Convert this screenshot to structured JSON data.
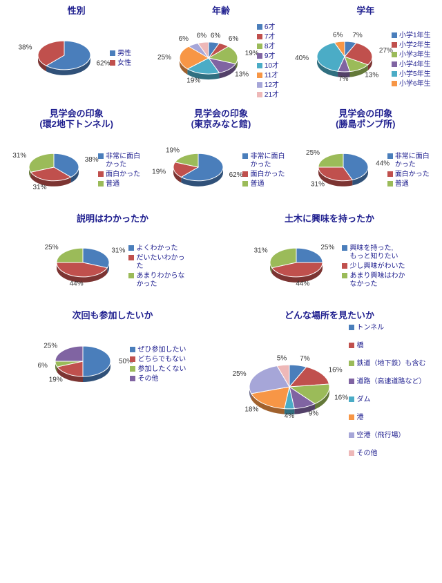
{
  "colors": {
    "series": [
      "#4a7ebb",
      "#c0504d",
      "#9bbb59",
      "#8064a2",
      "#4bacc6",
      "#f79646",
      "#a6a6d8",
      "#eeb8b8",
      "#c3d69b",
      "#bfb1d0"
    ],
    "title": "#1f1f8f",
    "label": "#333333"
  },
  "charts": [
    {
      "id": "gender",
      "title": "性別",
      "span": 2,
      "pieR": 38,
      "threeD": true,
      "slices": [
        {
          "label": "男性",
          "pct": 62
        },
        {
          "label": "女性",
          "pct": 38
        }
      ]
    },
    {
      "id": "age",
      "title": "年齢",
      "span": 2,
      "pieR": 42,
      "threeD": true,
      "slices": [
        {
          "label": "6才",
          "pct": 6
        },
        {
          "label": "7才",
          "pct": 6
        },
        {
          "label": "8才",
          "pct": 19
        },
        {
          "label": "9才",
          "pct": 13
        },
        {
          "label": "10才",
          "pct": 19
        },
        {
          "label": "11才",
          "pct": 25
        },
        {
          "label": "12才",
          "pct": 6
        },
        {
          "label": "21才",
          "pct": 6
        }
      ]
    },
    {
      "id": "grade",
      "title": "学年",
      "span": 2,
      "pieR": 40,
      "threeD": true,
      "slices": [
        {
          "label": "小学1年生",
          "pct": 7
        },
        {
          "label": "小学2年生",
          "pct": 27
        },
        {
          "label": "小学3年生",
          "pct": 13
        },
        {
          "label": "小学4年生",
          "pct": 7
        },
        {
          "label": "小学5年生",
          "pct": 40
        },
        {
          "label": "小学6年生",
          "pct": 6
        }
      ]
    },
    {
      "id": "impression1",
      "title": "見学会の印象\n(環2地下トンネル)",
      "span": 2,
      "pieR": 36,
      "threeD": true,
      "slices": [
        {
          "label": "非常に面白\nかった",
          "pct": 38
        },
        {
          "label": "面白かった",
          "pct": 31
        },
        {
          "label": "普通",
          "pct": 31
        }
      ]
    },
    {
      "id": "impression2",
      "title": "見学会の印象\n(東京みなと館)",
      "span": 2,
      "pieR": 36,
      "threeD": true,
      "slices": [
        {
          "label": "非常に面白\nかった",
          "pct": 62
        },
        {
          "label": "面白かった",
          "pct": 19
        },
        {
          "label": "普通",
          "pct": 19
        }
      ]
    },
    {
      "id": "impression3",
      "title": "見学会の印象\n(勝島ポンプ所)",
      "span": 2,
      "pieR": 36,
      "threeD": true,
      "slices": [
        {
          "label": "非常に面白\nかった",
          "pct": 44
        },
        {
          "label": "面白かった",
          "pct": 31
        },
        {
          "label": "普通",
          "pct": 25
        }
      ]
    },
    {
      "id": "understood",
      "title": "説明はわかったか",
      "span": 3,
      "pieR": 38,
      "threeD": true,
      "slices": [
        {
          "label": "よくわかった",
          "pct": 31
        },
        {
          "label": "だいたいわかっ\nた",
          "pct": 44
        },
        {
          "label": "あまりわからな\nかった",
          "pct": 25
        }
      ]
    },
    {
      "id": "interest",
      "title": "土木に興味を持ったか",
      "span": 3,
      "pieR": 38,
      "threeD": true,
      "slices": [
        {
          "label": "興味を持った,\nもっと知りたい",
          "pct": 25
        },
        {
          "label": "少し興味がわいた",
          "pct": 44
        },
        {
          "label": "あまり興味はわか\nなかった",
          "pct": 31
        }
      ]
    },
    {
      "id": "next",
      "title": "次回も参加したいか",
      "span": 3,
      "pieR": 40,
      "threeD": true,
      "slices": [
        {
          "label": "ぜひ参加したい",
          "pct": 50
        },
        {
          "label": "どちらでもない",
          "pct": 19
        },
        {
          "label": "参加したくない",
          "pct": 6
        },
        {
          "label": "その他",
          "pct": 25
        }
      ]
    },
    {
      "id": "where",
      "title": "どんな場所を見たいか",
      "span": 3,
      "pieR": 58,
      "threeD": true,
      "legendGap": true,
      "slices": [
        {
          "label": "トンネル",
          "pct": 7
        },
        {
          "label": "橋",
          "pct": 16
        },
        {
          "label": "鉄道（地下鉄）も含む",
          "pct": 16
        },
        {
          "label": "道路（高速道路など）",
          "pct": 9
        },
        {
          "label": "ダム",
          "pct": 4
        },
        {
          "label": "港",
          "pct": 18
        },
        {
          "label": "空港（飛行場）",
          "pct": 25
        },
        {
          "label": "その他",
          "pct": 5
        }
      ]
    }
  ]
}
